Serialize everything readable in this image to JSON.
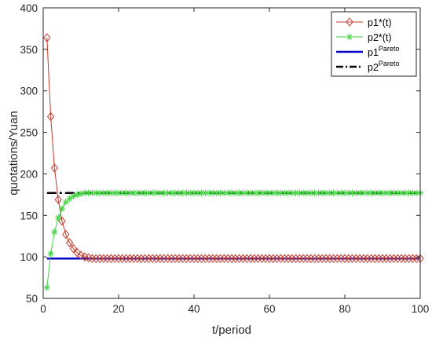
{
  "chart_data": {
    "type": "line",
    "xlabel": "t/period",
    "ylabel": "quotations/Yuan",
    "xlim": [
      0,
      100
    ],
    "ylim": [
      50,
      400
    ],
    "xticks": [
      0,
      20,
      40,
      60,
      80,
      100
    ],
    "yticks": [
      50,
      100,
      150,
      200,
      250,
      300,
      350,
      400
    ],
    "grid": false,
    "legend_position": "top-right",
    "series": [
      {
        "name": "p1*(t)",
        "legend": {
          "base": "p1*(t)",
          "sup": ""
        },
        "color": "#c0392b",
        "marker": "diamond",
        "line_style": "solid",
        "x": [
          1,
          2,
          3,
          4,
          5,
          6,
          7,
          8,
          9,
          10,
          11,
          12,
          13,
          14,
          15,
          16,
          17,
          18,
          19,
          20,
          21,
          22,
          23,
          24,
          25,
          26,
          27,
          28,
          29,
          30,
          31,
          32,
          33,
          34,
          35,
          36,
          37,
          38,
          39,
          40,
          41,
          42,
          43,
          44,
          45,
          46,
          47,
          48,
          49,
          50,
          51,
          52,
          53,
          54,
          55,
          56,
          57,
          58,
          59,
          60,
          61,
          62,
          63,
          64,
          65,
          66,
          67,
          68,
          69,
          70,
          71,
          72,
          73,
          74,
          75,
          76,
          77,
          78,
          79,
          80,
          81,
          82,
          83,
          84,
          85,
          86,
          87,
          88,
          89,
          90,
          91,
          92,
          93,
          94,
          95,
          96,
          97,
          98,
          99,
          100
        ],
        "y": [
          364,
          269,
          207,
          169,
          143,
          127,
          117,
          110,
          105,
          102,
          100,
          99,
          98,
          98,
          98,
          98,
          98,
          98,
          98,
          98,
          98,
          98,
          98,
          98,
          98,
          98,
          98,
          98,
          98,
          98,
          98,
          98,
          98,
          98,
          98,
          98,
          98,
          98,
          98,
          98,
          98,
          98,
          98,
          98,
          98,
          98,
          98,
          98,
          98,
          98,
          98,
          98,
          98,
          98,
          98,
          98,
          98,
          98,
          98,
          98,
          98,
          98,
          98,
          98,
          98,
          98,
          98,
          98,
          98,
          98,
          98,
          98,
          98,
          98,
          98,
          98,
          98,
          98,
          98,
          98,
          98,
          98,
          98,
          98,
          98,
          98,
          98,
          98,
          98,
          98,
          98,
          98,
          98,
          98,
          98,
          98,
          98,
          98,
          98,
          98
        ]
      },
      {
        "name": "p2*(t)",
        "legend": {
          "base": "p2*(t)",
          "sup": ""
        },
        "color": "#3ed23e",
        "marker": "asterisk",
        "line_style": "solid",
        "x": [
          1,
          2,
          3,
          4,
          5,
          6,
          7,
          8,
          9,
          10,
          11,
          12,
          13,
          14,
          15,
          16,
          17,
          18,
          19,
          20,
          21,
          22,
          23,
          24,
          25,
          26,
          27,
          28,
          29,
          30,
          31,
          32,
          33,
          34,
          35,
          36,
          37,
          38,
          39,
          40,
          41,
          42,
          43,
          44,
          45,
          46,
          47,
          48,
          49,
          50,
          51,
          52,
          53,
          54,
          55,
          56,
          57,
          58,
          59,
          60,
          61,
          62,
          63,
          64,
          65,
          66,
          67,
          68,
          69,
          70,
          71,
          72,
          73,
          74,
          75,
          76,
          77,
          78,
          79,
          80,
          81,
          82,
          83,
          84,
          85,
          86,
          87,
          88,
          89,
          90,
          91,
          92,
          93,
          94,
          95,
          96,
          97,
          98,
          99,
          100
        ],
        "y": [
          63,
          104,
          130,
          147,
          158,
          166,
          170,
          173,
          175,
          176,
          177,
          177,
          177,
          177,
          177,
          177,
          177,
          177,
          177,
          177,
          177,
          177,
          177,
          177,
          177,
          177,
          177,
          177,
          177,
          177,
          177,
          177,
          177,
          177,
          177,
          177,
          177,
          177,
          177,
          177,
          177,
          177,
          177,
          177,
          177,
          177,
          177,
          177,
          177,
          177,
          177,
          177,
          177,
          177,
          177,
          177,
          177,
          177,
          177,
          177,
          177,
          177,
          177,
          177,
          177,
          177,
          177,
          177,
          177,
          177,
          177,
          177,
          177,
          177,
          177,
          177,
          177,
          177,
          177,
          177,
          177,
          177,
          177,
          177,
          177,
          177,
          177,
          177,
          177,
          177,
          177,
          177,
          177,
          177,
          177,
          177,
          177,
          177,
          177,
          177
        ]
      },
      {
        "name": "p1Pareto",
        "legend": {
          "base": "p1",
          "sup": "Pareto"
        },
        "color": "#0000cc",
        "marker": "none",
        "line_style": "solid",
        "x": [
          1,
          100
        ],
        "y": [
          98,
          98
        ]
      },
      {
        "name": "p2Pareto",
        "legend": {
          "base": "p2",
          "sup": "Pareto"
        },
        "color": "#000000",
        "marker": "none",
        "line_style": "dashdot",
        "x": [
          1,
          100
        ],
        "y": [
          177,
          177
        ]
      }
    ]
  }
}
